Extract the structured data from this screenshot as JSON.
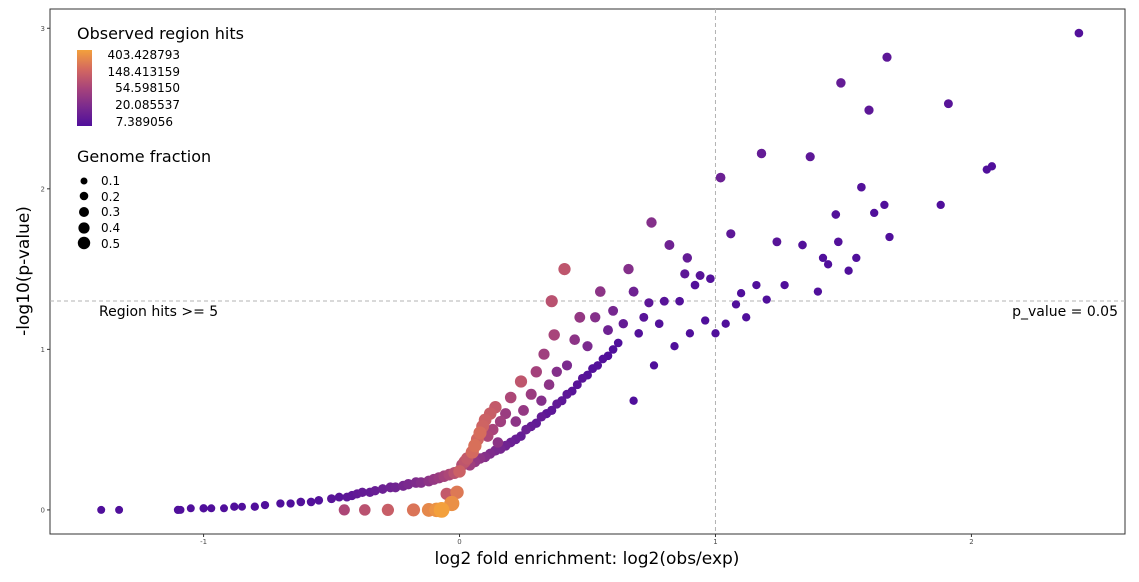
{
  "chart_data": {
    "type": "scatter",
    "xlabel": "log2 fold enrichment: log2(obs/exp)",
    "ylabel": "-log10(p-value)",
    "xlim": [
      -1.6,
      2.6
    ],
    "ylim": [
      -0.15,
      3.12
    ],
    "x_ticks": [
      -1,
      0,
      1,
      2
    ],
    "y_ticks": [
      0,
      1,
      2,
      3
    ],
    "grid": false,
    "thresholds": {
      "vertical_x": 1,
      "horizontal_y": 1.301
    },
    "annotations": {
      "left": "Region hits >= 5",
      "right": "p_value = 0.05"
    },
    "color_legend": {
      "title": "Observed region hits",
      "position": "top-left",
      "scale": "log",
      "gradient": [
        "#f3a03c",
        "#d4695f",
        "#a8447a",
        "#7a2a8e",
        "#500f9b"
      ],
      "labels": [
        "403.428793",
        "148.413159",
        "54.598150",
        "20.085537",
        "7.389056"
      ],
      "values": [
        403.428793,
        148.413159,
        54.59815,
        20.085537,
        7.389056
      ]
    },
    "size_legend": {
      "title": "Genome fraction",
      "labels": [
        "0.1",
        "0.2",
        "0.3",
        "0.4",
        "0.5"
      ],
      "values": [
        0.1,
        0.2,
        0.3,
        0.4,
        0.5
      ]
    },
    "points": [
      [
        -1.4,
        0.0,
        5,
        0.05
      ],
      [
        -1.33,
        0.0,
        5,
        0.05
      ],
      [
        -1.1,
        0.0,
        6,
        0.06
      ],
      [
        -1.09,
        0.0,
        5,
        0.05
      ],
      [
        -1.05,
        0.01,
        6,
        0.05
      ],
      [
        -1.0,
        0.01,
        6,
        0.06
      ],
      [
        -0.97,
        0.01,
        6,
        0.05
      ],
      [
        -0.92,
        0.01,
        6,
        0.05
      ],
      [
        -0.88,
        0.02,
        7,
        0.06
      ],
      [
        -0.85,
        0.02,
        6,
        0.05
      ],
      [
        -0.8,
        0.02,
        7,
        0.06
      ],
      [
        -0.76,
        0.03,
        7,
        0.06
      ],
      [
        -0.7,
        0.04,
        7,
        0.06
      ],
      [
        -0.66,
        0.04,
        7,
        0.06
      ],
      [
        -0.62,
        0.05,
        8,
        0.07
      ],
      [
        -0.58,
        0.05,
        8,
        0.07
      ],
      [
        -0.55,
        0.06,
        8,
        0.07
      ],
      [
        -0.5,
        0.07,
        9,
        0.08
      ],
      [
        -0.47,
        0.08,
        9,
        0.08
      ],
      [
        -0.45,
        0.0,
        60,
        0.18
      ],
      [
        -0.44,
        0.08,
        10,
        0.08
      ],
      [
        -0.42,
        0.09,
        10,
        0.09
      ],
      [
        -0.4,
        0.1,
        11,
        0.09
      ],
      [
        -0.38,
        0.11,
        12,
        0.1
      ],
      [
        -0.37,
        0.0,
        80,
        0.2
      ],
      [
        -0.35,
        0.11,
        12,
        0.1
      ],
      [
        -0.33,
        0.12,
        13,
        0.1
      ],
      [
        -0.3,
        0.13,
        14,
        0.11
      ],
      [
        -0.28,
        0.0,
        110,
        0.24
      ],
      [
        -0.27,
        0.14,
        15,
        0.12
      ],
      [
        -0.25,
        0.14,
        16,
        0.12
      ],
      [
        -0.22,
        0.15,
        18,
        0.13
      ],
      [
        -0.2,
        0.16,
        20,
        0.14
      ],
      [
        -0.18,
        0.0,
        180,
        0.3
      ],
      [
        -0.17,
        0.17,
        22,
        0.15
      ],
      [
        -0.15,
        0.17,
        25,
        0.15
      ],
      [
        -0.12,
        0.0,
        260,
        0.35
      ],
      [
        -0.12,
        0.18,
        30,
        0.16
      ],
      [
        -0.1,
        0.19,
        35,
        0.17
      ],
      [
        -0.09,
        0.0,
        320,
        0.4
      ],
      [
        -0.08,
        0.2,
        40,
        0.18
      ],
      [
        -0.07,
        0.0,
        403,
        0.5
      ],
      [
        -0.06,
        0.21,
        50,
        0.2
      ],
      [
        -0.05,
        0.1,
        100,
        0.25
      ],
      [
        -0.04,
        0.22,
        60,
        0.21
      ],
      [
        -0.03,
        0.04,
        300,
        0.45
      ],
      [
        -0.02,
        0.23,
        80,
        0.23
      ],
      [
        -0.01,
        0.11,
        200,
        0.32
      ],
      [
        0.0,
        0.24,
        120,
        0.26
      ],
      [
        0.01,
        0.28,
        70,
        0.22
      ],
      [
        0.02,
        0.3,
        90,
        0.24
      ],
      [
        0.03,
        0.32,
        100,
        0.25
      ],
      [
        0.04,
        0.28,
        45,
        0.18
      ],
      [
        0.05,
        0.36,
        150,
        0.3
      ],
      [
        0.06,
        0.4,
        170,
        0.31
      ],
      [
        0.06,
        0.3,
        35,
        0.16
      ],
      [
        0.07,
        0.44,
        140,
        0.29
      ],
      [
        0.08,
        0.48,
        160,
        0.3
      ],
      [
        0.08,
        0.32,
        30,
        0.15
      ],
      [
        0.09,
        0.52,
        130,
        0.28
      ],
      [
        0.1,
        0.56,
        120,
        0.27
      ],
      [
        0.1,
        0.33,
        25,
        0.14
      ],
      [
        0.11,
        0.46,
        60,
        0.2
      ],
      [
        0.12,
        0.6,
        110,
        0.26
      ],
      [
        0.12,
        0.35,
        22,
        0.13
      ],
      [
        0.13,
        0.5,
        55,
        0.19
      ],
      [
        0.14,
        0.64,
        100,
        0.25
      ],
      [
        0.14,
        0.37,
        20,
        0.13
      ],
      [
        0.15,
        0.42,
        30,
        0.15
      ],
      [
        0.16,
        0.55,
        45,
        0.18
      ],
      [
        0.16,
        0.38,
        18,
        0.12
      ],
      [
        0.18,
        0.4,
        16,
        0.12
      ],
      [
        0.18,
        0.6,
        40,
        0.17
      ],
      [
        0.2,
        0.42,
        14,
        0.11
      ],
      [
        0.2,
        0.7,
        60,
        0.2
      ],
      [
        0.22,
        0.44,
        13,
        0.11
      ],
      [
        0.22,
        0.55,
        30,
        0.15
      ],
      [
        0.24,
        0.46,
        12,
        0.1
      ],
      [
        0.24,
        0.8,
        90,
        0.24
      ],
      [
        0.25,
        0.62,
        35,
        0.16
      ],
      [
        0.26,
        0.5,
        14,
        0.11
      ],
      [
        0.28,
        0.52,
        12,
        0.1
      ],
      [
        0.28,
        0.72,
        40,
        0.17
      ],
      [
        0.3,
        0.54,
        11,
        0.1
      ],
      [
        0.3,
        0.86,
        50,
        0.19
      ],
      [
        0.32,
        0.58,
        12,
        0.1
      ],
      [
        0.32,
        0.68,
        25,
        0.14
      ],
      [
        0.33,
        0.97,
        45,
        0.18
      ],
      [
        0.34,
        0.6,
        10,
        0.09
      ],
      [
        0.35,
        0.78,
        30,
        0.15
      ],
      [
        0.36,
        1.3,
        80,
        0.23
      ],
      [
        0.36,
        0.62,
        10,
        0.09
      ],
      [
        0.37,
        1.09,
        55,
        0.19
      ],
      [
        0.38,
        0.66,
        11,
        0.09
      ],
      [
        0.38,
        0.86,
        25,
        0.14
      ],
      [
        0.4,
        0.68,
        10,
        0.09
      ],
      [
        0.41,
        1.5,
        90,
        0.24
      ],
      [
        0.42,
        0.72,
        10,
        0.09
      ],
      [
        0.42,
        0.9,
        20,
        0.13
      ],
      [
        0.44,
        0.74,
        9,
        0.08
      ],
      [
        0.45,
        1.06,
        30,
        0.15
      ],
      [
        0.46,
        0.78,
        9,
        0.08
      ],
      [
        0.47,
        1.2,
        35,
        0.16
      ],
      [
        0.48,
        0.82,
        9,
        0.08
      ],
      [
        0.5,
        0.84,
        8,
        0.08
      ],
      [
        0.5,
        1.02,
        20,
        0.13
      ],
      [
        0.52,
        0.88,
        8,
        0.08
      ],
      [
        0.53,
        1.2,
        25,
        0.14
      ],
      [
        0.54,
        0.9,
        8,
        0.07
      ],
      [
        0.55,
        1.36,
        30,
        0.15
      ],
      [
        0.56,
        0.94,
        8,
        0.07
      ],
      [
        0.58,
        0.96,
        7,
        0.07
      ],
      [
        0.58,
        1.12,
        15,
        0.12
      ],
      [
        0.6,
        1.0,
        7,
        0.07
      ],
      [
        0.6,
        1.24,
        18,
        0.12
      ],
      [
        0.62,
        1.04,
        7,
        0.07
      ],
      [
        0.64,
        1.16,
        12,
        0.1
      ],
      [
        0.66,
        1.5,
        25,
        0.14
      ],
      [
        0.68,
        1.36,
        15,
        0.12
      ],
      [
        0.68,
        0.68,
        7,
        0.06
      ],
      [
        0.7,
        1.1,
        8,
        0.07
      ],
      [
        0.72,
        1.2,
        9,
        0.08
      ],
      [
        0.74,
        1.29,
        10,
        0.09
      ],
      [
        0.75,
        1.79,
        25,
        0.14
      ],
      [
        0.76,
        0.9,
        7,
        0.06
      ],
      [
        0.78,
        1.16,
        8,
        0.07
      ],
      [
        0.8,
        1.3,
        9,
        0.08
      ],
      [
        0.82,
        1.65,
        15,
        0.12
      ],
      [
        0.84,
        1.02,
        7,
        0.06
      ],
      [
        0.86,
        1.3,
        8,
        0.07
      ],
      [
        0.88,
        1.47,
        10,
        0.09
      ],
      [
        0.89,
        1.57,
        12,
        0.1
      ],
      [
        0.9,
        1.1,
        7,
        0.06
      ],
      [
        0.92,
        1.4,
        8,
        0.07
      ],
      [
        0.94,
        1.46,
        9,
        0.08
      ],
      [
        0.96,
        1.18,
        7,
        0.06
      ],
      [
        0.98,
        1.44,
        8,
        0.07
      ],
      [
        1.0,
        1.1,
        6,
        0.06
      ],
      [
        1.02,
        2.07,
        14,
        0.11
      ],
      [
        1.04,
        1.16,
        6,
        0.06
      ],
      [
        1.06,
        1.72,
        10,
        0.09
      ],
      [
        1.08,
        1.28,
        7,
        0.06
      ],
      [
        1.1,
        1.35,
        7,
        0.06
      ],
      [
        1.12,
        1.2,
        7,
        0.06
      ],
      [
        1.16,
        1.4,
        7,
        0.06
      ],
      [
        1.18,
        2.22,
        12,
        0.1
      ],
      [
        1.2,
        1.31,
        7,
        0.06
      ],
      [
        1.24,
        1.67,
        9,
        0.08
      ],
      [
        1.27,
        1.4,
        7,
        0.06
      ],
      [
        1.34,
        1.65,
        8,
        0.07
      ],
      [
        1.37,
        2.2,
        10,
        0.09
      ],
      [
        1.4,
        1.36,
        6,
        0.06
      ],
      [
        1.42,
        1.57,
        7,
        0.06
      ],
      [
        1.44,
        1.53,
        7,
        0.06
      ],
      [
        1.47,
        1.84,
        8,
        0.07
      ],
      [
        1.48,
        1.67,
        8,
        0.07
      ],
      [
        1.49,
        2.66,
        12,
        0.1
      ],
      [
        1.52,
        1.49,
        6,
        0.06
      ],
      [
        1.55,
        1.57,
        7,
        0.06
      ],
      [
        1.57,
        2.01,
        8,
        0.07
      ],
      [
        1.6,
        2.49,
        10,
        0.09
      ],
      [
        1.62,
        1.85,
        7,
        0.06
      ],
      [
        1.66,
        1.9,
        7,
        0.06
      ],
      [
        1.67,
        2.82,
        10,
        0.09
      ],
      [
        1.68,
        1.7,
        6,
        0.06
      ],
      [
        1.88,
        1.9,
        7,
        0.06
      ],
      [
        1.91,
        2.53,
        9,
        0.08
      ],
      [
        2.06,
        2.12,
        7,
        0.06
      ],
      [
        2.08,
        2.14,
        7,
        0.06
      ],
      [
        2.42,
        2.97,
        8,
        0.07
      ]
    ]
  }
}
